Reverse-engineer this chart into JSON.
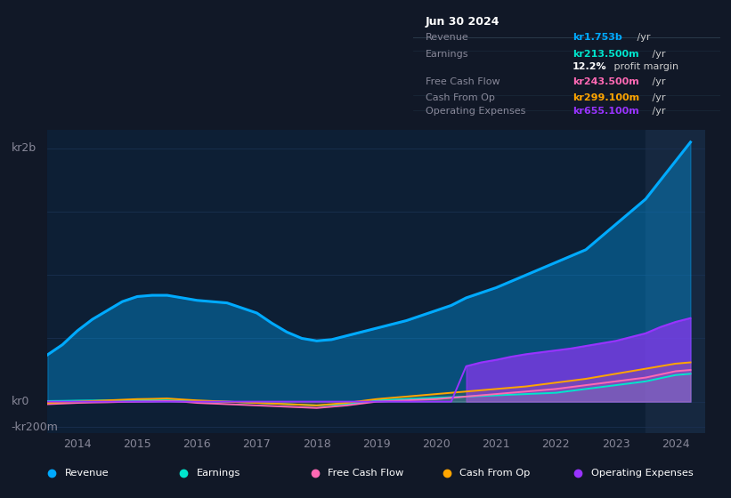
{
  "bg_color": "#111827",
  "plot_bg": "#0d1f35",
  "grid_color": "#1a3050",
  "text_color": "#888899",
  "revenue_color": "#00aaff",
  "earnings_color": "#00e5cc",
  "fcf_color": "#ff69b4",
  "cashop_color": "#ffa500",
  "opex_color": "#9933ff",
  "ylabel_kr2b": "kr2b",
  "ylabel_kr0": "kr0",
  "ylabel_krneg200m": "-kr200m",
  "info_box": {
    "title": "Jun 30 2024",
    "rows": [
      {
        "label": "Revenue",
        "value": "kr1.753b",
        "suffix": " /yr",
        "value_color": "#00aaff",
        "bold_value": true
      },
      {
        "label": "Earnings",
        "value": "kr213.500m",
        "suffix": " /yr",
        "value_color": "#00e5cc",
        "bold_value": true
      },
      {
        "label": "",
        "value": "12.2%",
        "suffix": " profit margin",
        "value_color": "#ffffff",
        "bold_value": true
      },
      {
        "label": "Free Cash Flow",
        "value": "kr243.500m",
        "suffix": " /yr",
        "value_color": "#ff69b4",
        "bold_value": true
      },
      {
        "label": "Cash From Op",
        "value": "kr299.100m",
        "suffix": " /yr",
        "value_color": "#ffa500",
        "bold_value": true
      },
      {
        "label": "Operating Expenses",
        "value": "kr655.100m",
        "suffix": " /yr",
        "value_color": "#9933ff",
        "bold_value": true
      }
    ]
  },
  "years": [
    2013.5,
    2013.75,
    2014.0,
    2014.25,
    2014.5,
    2014.75,
    2015.0,
    2015.25,
    2015.5,
    2015.75,
    2016.0,
    2016.25,
    2016.5,
    2016.75,
    2017.0,
    2017.25,
    2017.5,
    2017.75,
    2018.0,
    2018.25,
    2018.5,
    2018.75,
    2019.0,
    2019.25,
    2019.5,
    2019.75,
    2020.0,
    2020.25,
    2020.5,
    2020.75,
    2021.0,
    2021.25,
    2021.5,
    2021.75,
    2022.0,
    2022.25,
    2022.5,
    2022.75,
    2023.0,
    2023.25,
    2023.5,
    2023.75,
    2024.0,
    2024.25
  ],
  "revenue": [
    370,
    450,
    560,
    650,
    720,
    790,
    830,
    840,
    840,
    820,
    800,
    790,
    780,
    740,
    700,
    620,
    550,
    500,
    480,
    490,
    520,
    550,
    580,
    610,
    640,
    680,
    720,
    760,
    820,
    860,
    900,
    950,
    1000,
    1050,
    1100,
    1150,
    1200,
    1300,
    1400,
    1500,
    1600,
    1750,
    1900,
    2050
  ],
  "earnings": [
    5,
    6,
    8,
    9,
    10,
    11,
    12,
    11,
    10,
    7,
    5,
    2,
    0,
    -5,
    -10,
    -15,
    -20,
    -25,
    -30,
    -25,
    -20,
    -10,
    10,
    15,
    20,
    25,
    30,
    35,
    40,
    45,
    50,
    55,
    60,
    65,
    70,
    85,
    100,
    115,
    130,
    145,
    160,
    185,
    210,
    220
  ],
  "fcf": [
    -20,
    -15,
    -10,
    -7,
    -5,
    -2,
    0,
    2,
    5,
    0,
    -10,
    -15,
    -20,
    -25,
    -30,
    -35,
    -40,
    -45,
    -50,
    -40,
    -30,
    -15,
    0,
    5,
    10,
    15,
    20,
    30,
    40,
    50,
    60,
    70,
    80,
    90,
    100,
    115,
    130,
    145,
    160,
    175,
    190,
    215,
    240,
    250
  ],
  "cashop": [
    -10,
    -5,
    0,
    5,
    10,
    15,
    20,
    22,
    25,
    17,
    10,
    5,
    0,
    -5,
    -10,
    -15,
    -20,
    -25,
    -30,
    -20,
    -10,
    5,
    20,
    30,
    40,
    50,
    60,
    70,
    80,
    90,
    100,
    110,
    120,
    135,
    150,
    165,
    180,
    200,
    220,
    240,
    260,
    280,
    300,
    310
  ],
  "opex": [
    0,
    0,
    0,
    0,
    0,
    0,
    0,
    0,
    0,
    0,
    0,
    0,
    0,
    0,
    0,
    0,
    0,
    0,
    0,
    0,
    0,
    0,
    0,
    0,
    0,
    0,
    0,
    0,
    280,
    310,
    330,
    355,
    375,
    390,
    405,
    420,
    440,
    460,
    480,
    510,
    540,
    590,
    630,
    660
  ],
  "xlim": [
    2013.5,
    2024.5
  ],
  "ylim": [
    -250,
    2150
  ],
  "xticks": [
    2014,
    2015,
    2016,
    2017,
    2018,
    2019,
    2020,
    2021,
    2022,
    2023,
    2024
  ],
  "highlight_x": 2023.5,
  "legend_items": [
    {
      "label": "Revenue",
      "color": "#00aaff"
    },
    {
      "label": "Earnings",
      "color": "#00e5cc"
    },
    {
      "label": "Free Cash Flow",
      "color": "#ff69b4"
    },
    {
      "label": "Cash From Op",
      "color": "#ffa500"
    },
    {
      "label": "Operating Expenses",
      "color": "#9933ff"
    }
  ]
}
